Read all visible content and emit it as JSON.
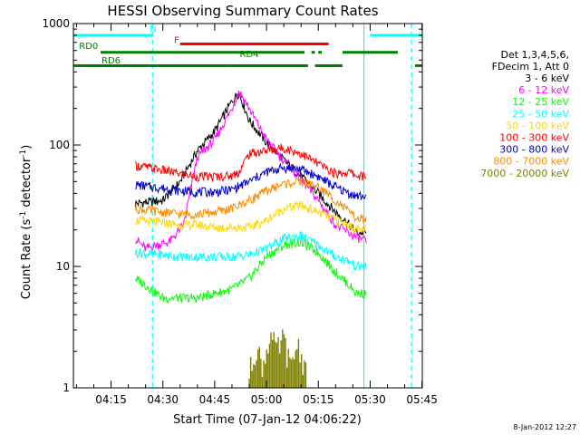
{
  "chart_data": {
    "type": "line",
    "title": "HESSI Observing Summary Count Rates",
    "xlabel": "Start Time (07-Jan-12 04:06:22)",
    "ylabel": "Count Rate (s",
    "ylabel_sup1": "-1",
    "ylabel_mid": " detector",
    "ylabel_sup2": "-1",
    "ylabel_end": ")",
    "y_scale": "log",
    "ylim": [
      1,
      1000
    ],
    "xlim_minutes": [
      4.1,
      105.1
    ],
    "x_ticks": [
      {
        "label": "04:15",
        "minute": 15
      },
      {
        "label": "04:30",
        "minute": 30
      },
      {
        "label": "04:45",
        "minute": 45
      },
      {
        "label": "05:00",
        "minute": 60
      },
      {
        "label": "05:15",
        "minute": 75
      },
      {
        "label": "05:30",
        "minute": 90
      },
      {
        "label": "05:45",
        "minute": 105
      }
    ],
    "y_ticks": [
      {
        "label": "1",
        "value": 1
      },
      {
        "label": "10",
        "value": 10
      },
      {
        "label": "100",
        "value": 100
      },
      {
        "label": "1000",
        "value": 1000
      }
    ],
    "legend_header": [
      "Det 1,3,4,5,6,",
      "FDecim 1, Att 0"
    ],
    "legend_position": "right",
    "series": [
      {
        "name": "3 - 6 keV",
        "color": "#000000",
        "x": [
          22,
          30,
          35,
          40,
          45,
          50,
          52,
          55,
          60,
          65,
          70,
          75,
          80,
          82,
          84,
          86,
          89
        ],
        "y": [
          33,
          35,
          50,
          90,
          130,
          230,
          270,
          160,
          105,
          75,
          55,
          40,
          28,
          25,
          22,
          19,
          19
        ]
      },
      {
        "name": "6 - 12 keV",
        "color": "#ff00ff",
        "x": [
          22,
          25,
          28,
          32,
          36,
          40,
          45,
          50,
          52,
          55,
          60,
          65,
          70,
          75,
          80,
          85,
          89
        ],
        "y": [
          17,
          14,
          15,
          16,
          22,
          80,
          110,
          200,
          280,
          200,
          110,
          75,
          52,
          35,
          22,
          18,
          16
        ]
      },
      {
        "name": "12 - 25 keV",
        "color": "#00ff00",
        "x": [
          22,
          25,
          30,
          35,
          40,
          45,
          50,
          55,
          60,
          65,
          70,
          75,
          80,
          84,
          86,
          89
        ],
        "y": [
          8,
          7,
          5.5,
          5.5,
          5.5,
          6,
          6.5,
          8,
          12,
          15,
          16,
          13,
          9,
          7,
          6,
          6
        ]
      },
      {
        "name": "25 - 50 keV",
        "color": "#00ffff",
        "x": [
          22,
          30,
          35,
          40,
          45,
          50,
          55,
          60,
          65,
          70,
          75,
          80,
          84,
          86,
          89
        ],
        "y": [
          13,
          12.5,
          12,
          12,
          12,
          12,
          12.5,
          14,
          17,
          18,
          15,
          12,
          11,
          10,
          10
        ]
      },
      {
        "name": "50 - 100 keV",
        "color": "#ffd700",
        "x": [
          22,
          30,
          35,
          40,
          45,
          50,
          55,
          60,
          65,
          70,
          75,
          80,
          84,
          86,
          89
        ],
        "y": [
          24,
          23,
          22,
          22,
          21,
          21,
          21,
          24,
          30,
          32,
          28,
          24,
          22,
          20,
          20
        ]
      },
      {
        "name": "100 - 300 keV",
        "color": "#ff0000",
        "x": [
          22,
          30,
          35,
          40,
          45,
          50,
          52,
          55,
          60,
          65,
          70,
          75,
          80,
          84,
          86,
          89
        ],
        "y": [
          68,
          62,
          58,
          55,
          55,
          56,
          60,
          85,
          90,
          95,
          85,
          70,
          58,
          60,
          56,
          55
        ]
      },
      {
        "name": "300 - 800 keV",
        "color": "#0000cd",
        "x": [
          22,
          30,
          35,
          40,
          45,
          50,
          55,
          60,
          65,
          70,
          75,
          80,
          84,
          86,
          89
        ],
        "y": [
          47,
          44,
          42,
          41,
          41,
          43,
          50,
          60,
          65,
          63,
          55,
          45,
          40,
          38,
          38
        ]
      },
      {
        "name": "800 - 7000 keV",
        "color": "#ff8c00",
        "x": [
          22,
          30,
          35,
          40,
          45,
          50,
          55,
          60,
          65,
          70,
          75,
          80,
          84,
          86,
          89
        ],
        "y": [
          30,
          28,
          27,
          27,
          28,
          30,
          35,
          42,
          48,
          50,
          45,
          35,
          28,
          25,
          24
        ]
      },
      {
        "name": "7000 - 20000 keV",
        "color": "#808000",
        "x": [
          55,
          57,
          59,
          61,
          63,
          65,
          67,
          69,
          71
        ],
        "y": [
          1.3,
          2.2,
          1.5,
          2.8,
          2.0,
          2.6,
          1.4,
          2.4,
          1.5
        ]
      }
    ],
    "status_bars": [
      {
        "label": "N",
        "color": "#00ffff",
        "segments": [
          [
            4.1,
            27
          ],
          [
            90,
            105.1
          ]
        ],
        "level": 800
      },
      {
        "label": "F",
        "color": "#ff0000",
        "segments": [
          [
            35,
            78
          ]
        ],
        "level": 680
      },
      {
        "label": "RD0",
        "color": "#008000",
        "segments": [
          [
            12,
            71
          ],
          [
            73,
            74
          ],
          [
            75,
            76
          ],
          [
            82,
            98
          ]
        ],
        "level": 580
      },
      {
        "label": "RD6",
        "color": "#008000",
        "segments": [
          [
            4.1,
            49
          ]
        ],
        "level": 450
      },
      {
        "label": "RD4",
        "color": "#008000",
        "segments": [
          [
            49,
            72
          ],
          [
            74,
            82
          ],
          [
            103,
            105.1
          ]
        ],
        "level": 450
      }
    ],
    "vertical_lines": {
      "solid_cyan_minutes": [
        4.1,
        88.2
      ],
      "dashed_cyan_minutes": [
        27,
        102
      ]
    },
    "grid": false
  },
  "footer": {
    "timestamp": "8-Jan-2012 12:27"
  }
}
